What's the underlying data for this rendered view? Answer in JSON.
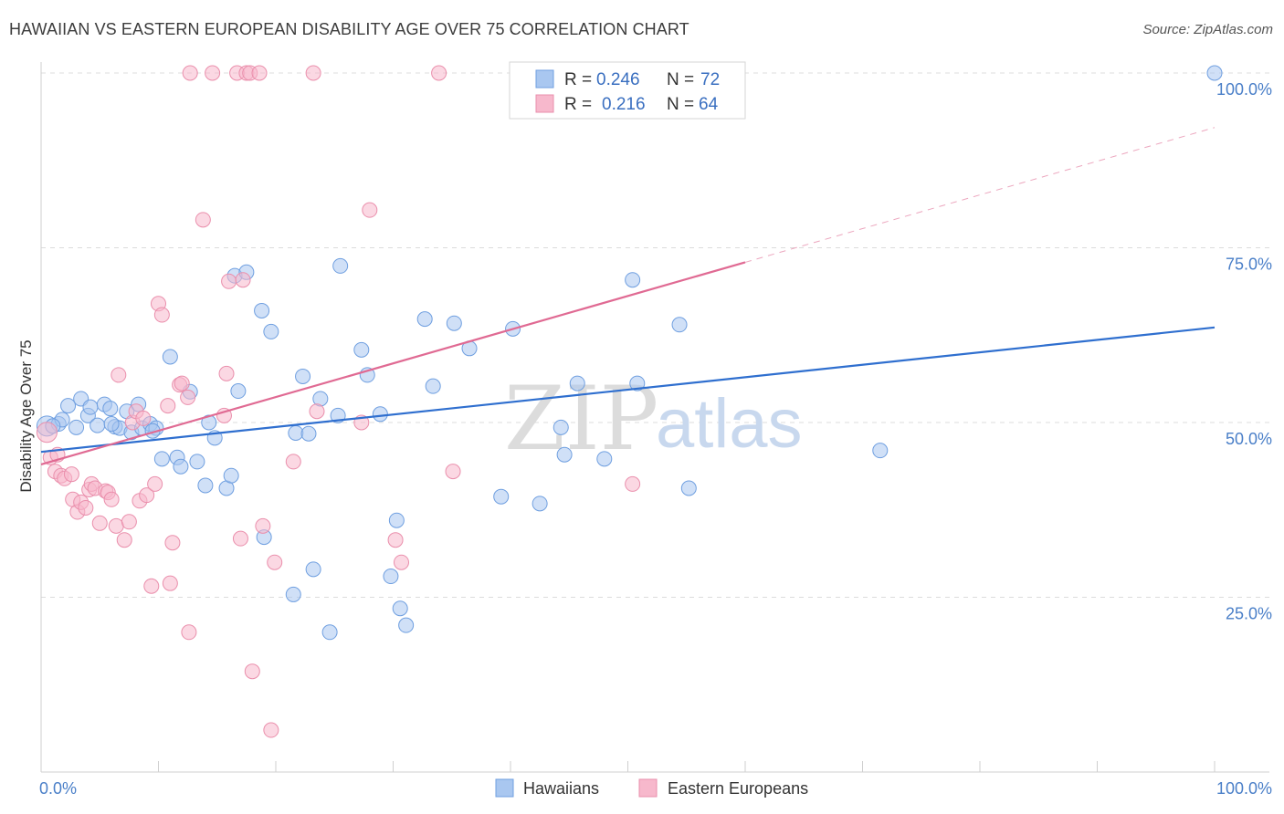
{
  "title": "HAWAIIAN VS EASTERN EUROPEAN DISABILITY AGE OVER 75 CORRELATION CHART",
  "source": "Source: ZipAtlas.com",
  "watermark": {
    "zip": "ZIP",
    "atlas": "atlas"
  },
  "chart_data": {
    "type": "scatter",
    "ylabel": "Disability Age Over 75",
    "xlabel": "",
    "xlim": [
      0,
      100
    ],
    "ylim": [
      0,
      100
    ],
    "x_tick_labels": {
      "left": "0.0%",
      "right": "100.0%"
    },
    "y_ticks": [
      {
        "value": 25,
        "label": "25.0%"
      },
      {
        "value": 50,
        "label": "50.0%"
      },
      {
        "value": 75,
        "label": "75.0%"
      },
      {
        "value": 100,
        "label": "100.0%"
      }
    ],
    "grid": "horizontal dashed",
    "legend_position": "top-center",
    "stats": [
      {
        "r_label": "R = ",
        "r": "0.246",
        "n_label": "N = ",
        "n": "72",
        "color": "#a9c7f0"
      },
      {
        "r_label": "R = ",
        "r": "0.216",
        "n_label": "N = ",
        "n": "64",
        "color": "#f7b8cc"
      }
    ],
    "series": [
      {
        "name": "Hawaiians",
        "color": "#a9c7f0",
        "stroke": "#6f9fe0",
        "line_color": "#2f6fcf",
        "trend": {
          "x0": 0,
          "y0": 45.8,
          "x1": 100,
          "y1": 63.6,
          "dashed_from": null
        },
        "points": [
          [
            0.5,
            49.5
          ],
          [
            1.5,
            49.8
          ],
          [
            1.8,
            50.4
          ],
          [
            2.3,
            52.4
          ],
          [
            3,
            49.3
          ],
          [
            3.4,
            53.4
          ],
          [
            4,
            51
          ],
          [
            4.2,
            52.2
          ],
          [
            4.8,
            49.6
          ],
          [
            5.4,
            52.6
          ],
          [
            5.9,
            52
          ],
          [
            6.3,
            49.4
          ],
          [
            6.7,
            49.2
          ],
          [
            7.3,
            51.6
          ],
          [
            7.7,
            48.6
          ],
          [
            8.3,
            52.6
          ],
          [
            8.6,
            49.2
          ],
          [
            9.3,
            49.8
          ],
          [
            9.8,
            49.2
          ],
          [
            10.3,
            44.8
          ],
          [
            11,
            59.4
          ],
          [
            11.6,
            45
          ],
          [
            11.9,
            43.7
          ],
          [
            12.7,
            54.4
          ],
          [
            13.3,
            44.4
          ],
          [
            14,
            41
          ],
          [
            14.3,
            50
          ],
          [
            14.8,
            47.8
          ],
          [
            15.8,
            40.6
          ],
          [
            16.2,
            42.4
          ],
          [
            16.5,
            71
          ],
          [
            16.8,
            54.5
          ],
          [
            17.5,
            71.5
          ],
          [
            18.8,
            66
          ],
          [
            19,
            33.6
          ],
          [
            19.6,
            63
          ],
          [
            21.5,
            25.4
          ],
          [
            21.7,
            48.5
          ],
          [
            22.3,
            56.6
          ],
          [
            22.8,
            48.4
          ],
          [
            23.2,
            29
          ],
          [
            23.8,
            53.4
          ],
          [
            24.6,
            20
          ],
          [
            25.5,
            72.4
          ],
          [
            25.3,
            51
          ],
          [
            27.3,
            60.4
          ],
          [
            27.8,
            56.8
          ],
          [
            28.9,
            51.2
          ],
          [
            29.8,
            28
          ],
          [
            30.3,
            36
          ],
          [
            30.6,
            23.4
          ],
          [
            31.1,
            21
          ],
          [
            32.7,
            64.8
          ],
          [
            33.4,
            55.2
          ],
          [
            35.2,
            64.2
          ],
          [
            36.5,
            60.6
          ],
          [
            39.2,
            39.4
          ],
          [
            40.2,
            63.4
          ],
          [
            42.5,
            38.4
          ],
          [
            44.3,
            49.3
          ],
          [
            44.6,
            45.4
          ],
          [
            45.7,
            55.6
          ],
          [
            48,
            44.8
          ],
          [
            50.4,
            70.4
          ],
          [
            50.8,
            55.6
          ],
          [
            54.4,
            64
          ],
          [
            55.2,
            40.6
          ],
          [
            71.5,
            46
          ],
          [
            100,
            100
          ],
          [
            1,
            49.5
          ],
          [
            6,
            49.8
          ],
          [
            9.5,
            48.8
          ]
        ]
      },
      {
        "name": "Eastern Europeans",
        "color": "#f7b8cc",
        "stroke": "#ea8fac",
        "line_color": "#e06a93",
        "trend": {
          "x0": 0,
          "y0": 44,
          "x1": 100,
          "y1": 92.2,
          "dashed_from": 60
        },
        "points": [
          [
            0.5,
            48.6
          ],
          [
            0.8,
            45
          ],
          [
            1.2,
            43
          ],
          [
            1.7,
            42.4
          ],
          [
            2,
            42
          ],
          [
            2.6,
            42.6
          ],
          [
            2.7,
            39
          ],
          [
            3.1,
            37.2
          ],
          [
            3.4,
            38.6
          ],
          [
            3.8,
            37.8
          ],
          [
            4.1,
            40.4
          ],
          [
            4.3,
            41.2
          ],
          [
            4.6,
            40.6
          ],
          [
            5,
            35.6
          ],
          [
            5.5,
            40.2
          ],
          [
            5.7,
            40
          ],
          [
            6,
            39
          ],
          [
            6.4,
            35.2
          ],
          [
            6.6,
            56.8
          ],
          [
            7.1,
            33.2
          ],
          [
            7.5,
            35.8
          ],
          [
            7.8,
            50
          ],
          [
            8.1,
            51.6
          ],
          [
            8.4,
            38.8
          ],
          [
            8.7,
            50.6
          ],
          [
            9,
            39.6
          ],
          [
            9.4,
            26.6
          ],
          [
            9.7,
            41.2
          ],
          [
            10,
            67
          ],
          [
            10.3,
            65.4
          ],
          [
            10.8,
            52.4
          ],
          [
            11,
            27
          ],
          [
            11.2,
            32.8
          ],
          [
            11.8,
            55.4
          ],
          [
            12,
            55.6
          ],
          [
            12.5,
            53.6
          ],
          [
            12.6,
            20
          ],
          [
            12.7,
            100
          ],
          [
            13.8,
            79
          ],
          [
            14.6,
            100
          ],
          [
            15.6,
            51
          ],
          [
            15.8,
            57
          ],
          [
            16,
            70.2
          ],
          [
            16.7,
            100
          ],
          [
            17,
            33.4
          ],
          [
            17.2,
            70.4
          ],
          [
            17.5,
            100
          ],
          [
            17.8,
            100
          ],
          [
            18,
            14.4
          ],
          [
            18.6,
            100
          ],
          [
            18.9,
            35.2
          ],
          [
            19.9,
            30
          ],
          [
            19.6,
            6
          ],
          [
            21.5,
            44.4
          ],
          [
            23.2,
            100
          ],
          [
            23.5,
            51.6
          ],
          [
            27.3,
            50
          ],
          [
            28,
            80.4
          ],
          [
            30.2,
            33.2
          ],
          [
            30.7,
            30
          ],
          [
            33.9,
            100
          ],
          [
            35.1,
            43
          ],
          [
            50.4,
            41.2
          ],
          [
            1.4,
            45.4
          ]
        ]
      }
    ]
  },
  "bottom_legend": [
    {
      "label": "Hawaiians",
      "color": "#a9c7f0"
    },
    {
      "label": "Eastern Europeans",
      "color": "#f7b8cc"
    }
  ]
}
